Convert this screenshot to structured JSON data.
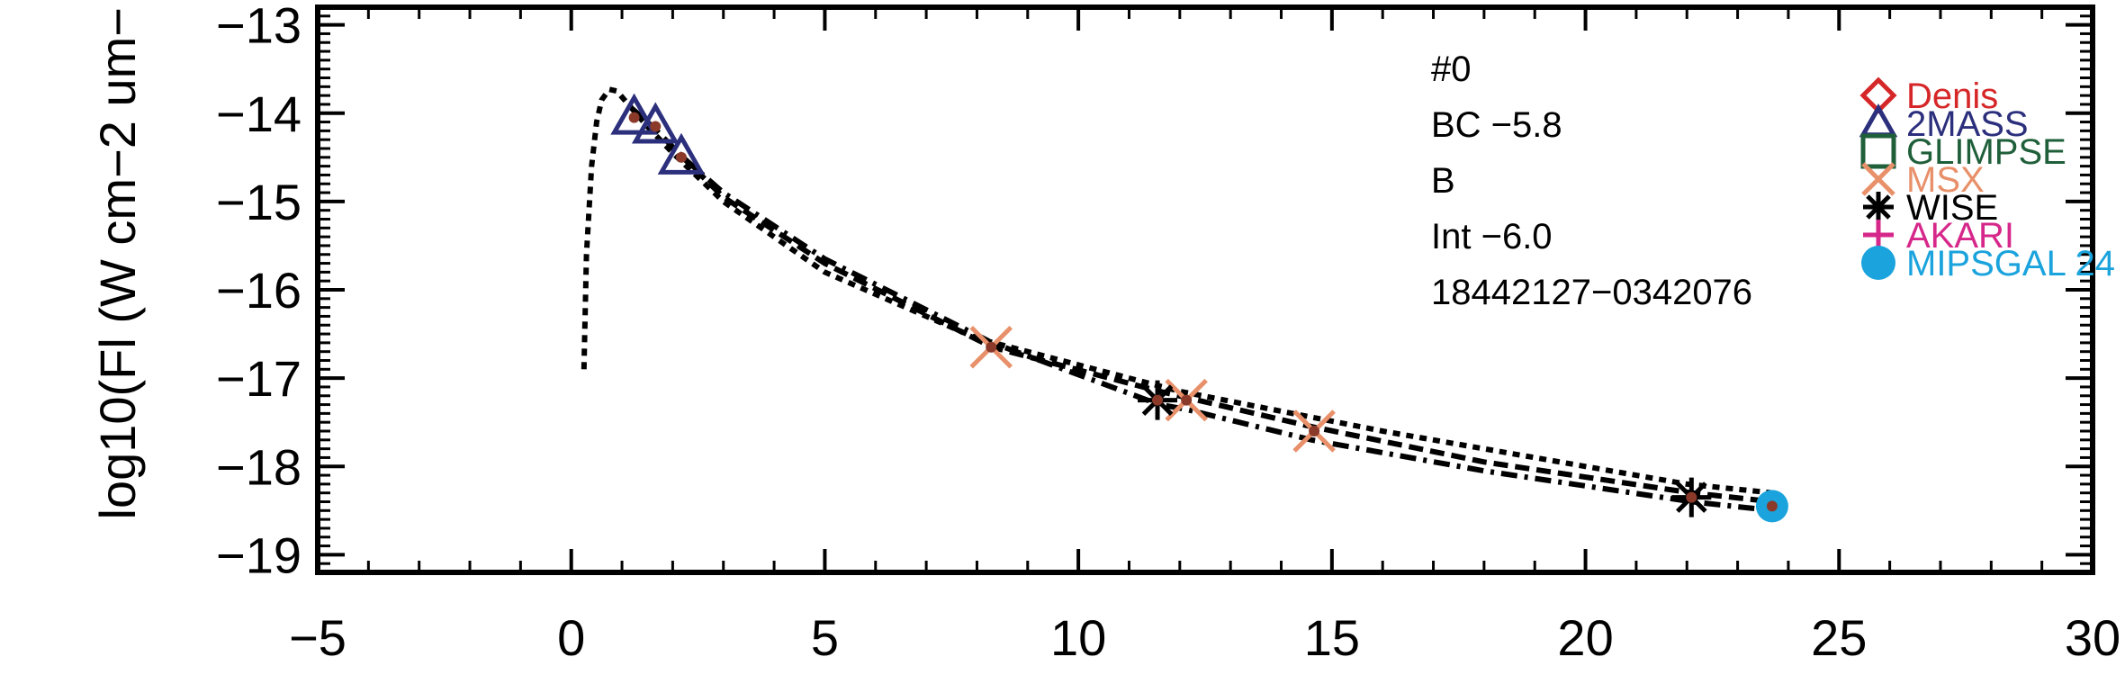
{
  "chart_data": {
    "type": "scatter",
    "title": "",
    "xlabel": "",
    "ylabel": "log10(Fl (W cm−2 um−",
    "xlim": [
      -5,
      30
    ],
    "ylim": [
      -19.2,
      -12.8
    ],
    "xticks": [
      -5,
      0,
      5,
      10,
      15,
      20,
      25,
      30
    ],
    "xtick_labels": [
      "−5",
      "0",
      "5",
      "10",
      "15",
      "20",
      "25",
      "30"
    ],
    "yticks": [
      -13,
      -14,
      -15,
      -16,
      -17,
      -18,
      -19
    ],
    "ytick_labels": [
      "−13",
      "−14",
      "−15",
      "−16",
      "−17",
      "−18",
      "−19"
    ],
    "grid": false,
    "legend_position": "top-right",
    "annotations": [
      "#0",
      "BC  −5.8",
      "B",
      "Int  −6.0",
      "18442127−0342076"
    ],
    "legend": [
      {
        "label": "Denis",
        "marker": "diamond",
        "color": "#d62728"
      },
      {
        "label": "2MASS",
        "marker": "triangle",
        "color": "#2b2f7c"
      },
      {
        "label": "GLIMPSE",
        "marker": "square",
        "color": "#1f5f3a"
      },
      {
        "label": "MSX",
        "marker": "x",
        "color": "#e8906a"
      },
      {
        "label": "WISE",
        "marker": "asterisk",
        "color": "#000000"
      },
      {
        "label": "AKARI",
        "marker": "plus",
        "color": "#d6278a"
      },
      {
        "label": "MIPSGAL 24",
        "marker": "circle",
        "color": "#1aa3dc"
      }
    ],
    "series": [
      {
        "survey": "2MASS",
        "marker": "triangle",
        "color": "#2b2f7c",
        "x": [
          1.24,
          1.66,
          2.17
        ],
        "y": [
          -14.05,
          -14.15,
          -14.5
        ]
      },
      {
        "survey": "MSX",
        "marker": "x",
        "color": "#e8906a",
        "x": [
          8.28,
          12.13,
          14.65
        ],
        "y": [
          -16.65,
          -17.25,
          -17.6
        ]
      },
      {
        "survey": "WISE",
        "marker": "asterisk",
        "color": "#000000",
        "x": [
          11.56,
          22.09
        ],
        "y": [
          -17.25,
          -18.35
        ]
      },
      {
        "survey": "MIPSGAL 24",
        "marker": "circle",
        "color": "#1aa3dc",
        "x": [
          23.68
        ],
        "y": [
          -18.45
        ]
      }
    ],
    "model_points": {
      "marker": "dot",
      "color": "#8b3a2a",
      "x": [
        1.24,
        1.66,
        2.17,
        8.28,
        11.56,
        12.13,
        14.65,
        22.09,
        23.68
      ],
      "y": [
        -14.05,
        -14.15,
        -14.5,
        -16.65,
        -17.25,
        -17.25,
        -17.6,
        -18.35,
        -18.45
      ]
    },
    "curves": [
      {
        "style": "dotted",
        "x": [
          0.25,
          0.3,
          0.4,
          0.5,
          0.6,
          0.75,
          0.9,
          1.2,
          1.5,
          2.0,
          3.0,
          5.0,
          8.0,
          12.0,
          16.0,
          22.0,
          23.7
        ],
        "y": [
          -16.9,
          -15.6,
          -14.6,
          -14.1,
          -13.85,
          -13.73,
          -13.75,
          -13.95,
          -14.15,
          -14.45,
          -15.0,
          -15.8,
          -16.55,
          -17.15,
          -17.6,
          -18.2,
          -18.3
        ]
      },
      {
        "style": "dashed",
        "x": [
          1.2,
          1.6,
          2.2,
          3.0,
          5.0,
          8.3,
          11.6,
          14.6,
          18.0,
          22.1,
          23.7
        ],
        "y": [
          -13.95,
          -14.15,
          -14.5,
          -14.95,
          -15.7,
          -16.65,
          -17.15,
          -17.55,
          -17.95,
          -18.3,
          -18.4
        ]
      },
      {
        "style": "dashdot",
        "x": [
          2.2,
          3.0,
          5.0,
          8.3,
          11.6,
          12.1,
          14.6,
          18.0,
          22.1,
          23.7
        ],
        "y": [
          -14.5,
          -14.9,
          -15.65,
          -16.6,
          -17.3,
          -17.35,
          -17.7,
          -18.05,
          -18.4,
          -18.5
        ]
      }
    ]
  }
}
